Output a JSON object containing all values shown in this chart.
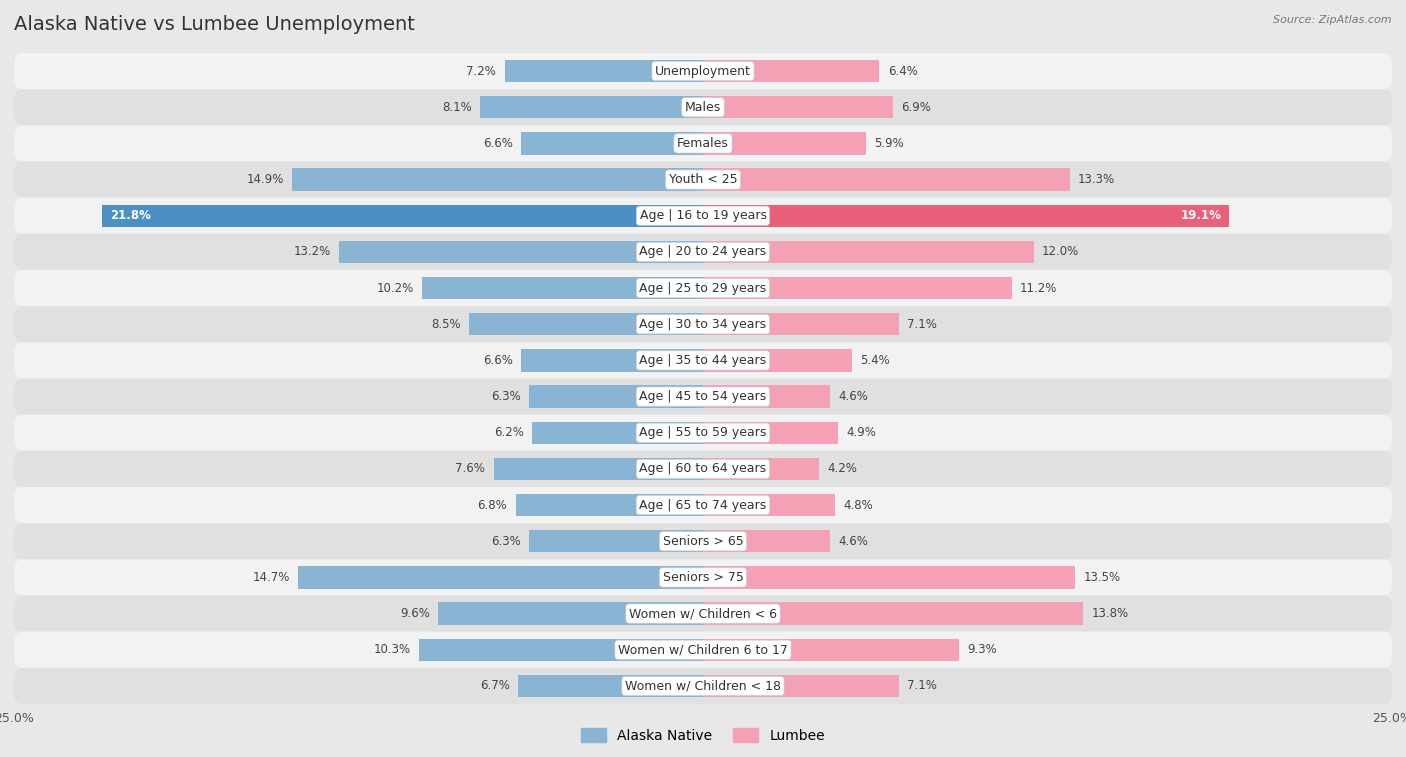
{
  "title": "Alaska Native vs Lumbee Unemployment",
  "source": "Source: ZipAtlas.com",
  "categories": [
    "Unemployment",
    "Males",
    "Females",
    "Youth < 25",
    "Age | 16 to 19 years",
    "Age | 20 to 24 years",
    "Age | 25 to 29 years",
    "Age | 30 to 34 years",
    "Age | 35 to 44 years",
    "Age | 45 to 54 years",
    "Age | 55 to 59 years",
    "Age | 60 to 64 years",
    "Age | 65 to 74 years",
    "Seniors > 65",
    "Seniors > 75",
    "Women w/ Children < 6",
    "Women w/ Children 6 to 17",
    "Women w/ Children < 18"
  ],
  "alaska_native": [
    7.2,
    8.1,
    6.6,
    14.9,
    21.8,
    13.2,
    10.2,
    8.5,
    6.6,
    6.3,
    6.2,
    7.6,
    6.8,
    6.3,
    14.7,
    9.6,
    10.3,
    6.7
  ],
  "lumbee": [
    6.4,
    6.9,
    5.9,
    13.3,
    19.1,
    12.0,
    11.2,
    7.1,
    5.4,
    4.6,
    4.9,
    4.2,
    4.8,
    4.6,
    13.5,
    13.8,
    9.3,
    7.1
  ],
  "alaska_color": "#8ab4d4",
  "lumbee_color": "#f4a0b5",
  "alaska_color_highlight": "#4a90c4",
  "lumbee_color_highlight": "#e8607a",
  "bar_height": 0.62,
  "xlim": 25.0,
  "bg_color": "#e8e8e8",
  "row_bg_colors": [
    "#f2f2f2",
    "#e0e0e0"
  ],
  "title_fontsize": 14,
  "label_fontsize": 9,
  "value_fontsize": 8.5
}
